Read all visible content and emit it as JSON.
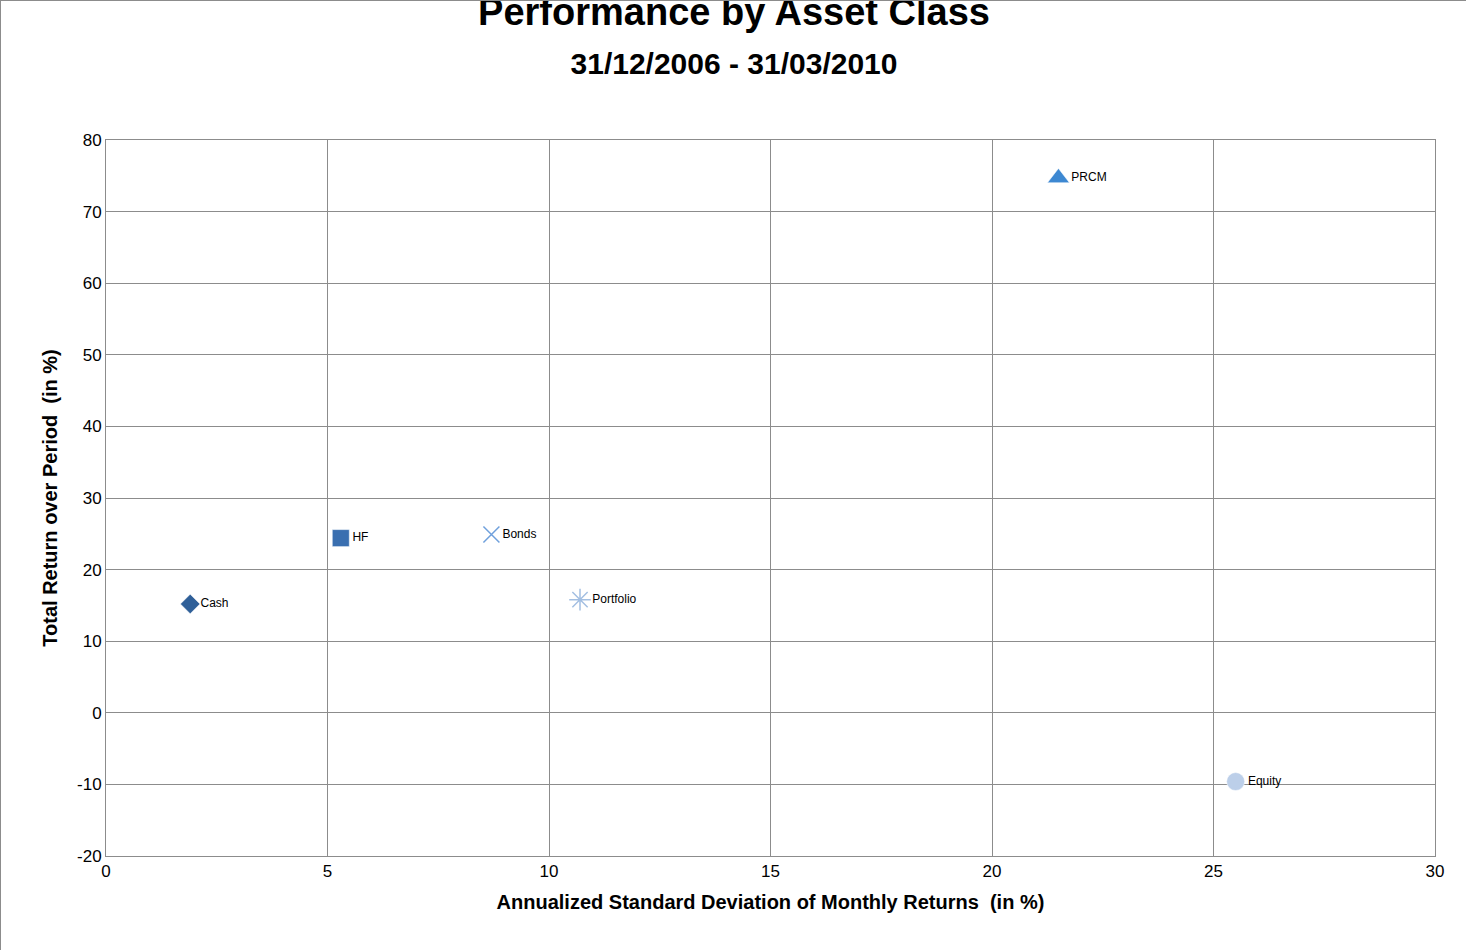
{
  "chart_data": {
    "type": "scatter",
    "title": "Performance by Asset Class",
    "subtitle": "31/12/2006 - 31/03/2010",
    "x_label": "Annualized Standard Deviation of Monthly Returns  (in %)",
    "y_label": "Total Return over Period  (in %)",
    "series": [
      {
        "name": "Cash",
        "color": "#2f5f98",
        "marker": "diamond",
        "x": [
          1.9
        ],
        "values": [
          15.2
        ]
      },
      {
        "name": "HF",
        "color": "#3a6fb0",
        "marker": "square",
        "x": [
          5.3
        ],
        "values": [
          24.4
        ]
      },
      {
        "name": "Bonds",
        "color": "#6fa0dc",
        "marker": "x",
        "x": [
          8.7
        ],
        "values": [
          24.9
        ]
      },
      {
        "name": "Portfolio",
        "color": "#a3bfe2",
        "marker": "asterisk",
        "x": [
          10.7
        ],
        "values": [
          15.8
        ]
      },
      {
        "name": "PRCM",
        "color": "#3d88d2",
        "marker": "triangle-up",
        "x": [
          21.5
        ],
        "values": [
          74.7
        ]
      },
      {
        "name": "Equity",
        "color": "#bccfe9",
        "marker": "circle",
        "x": [
          25.5
        ],
        "values": [
          -9.6
        ]
      }
    ],
    "xlim": [
      0,
      30
    ],
    "xticks": [
      0,
      5,
      10,
      15,
      20,
      25,
      30
    ],
    "ylim": [
      -20,
      80
    ],
    "yticks": [
      -20,
      -10,
      0,
      10,
      20,
      30,
      40,
      50,
      60,
      70,
      80
    ],
    "grid": true
  }
}
